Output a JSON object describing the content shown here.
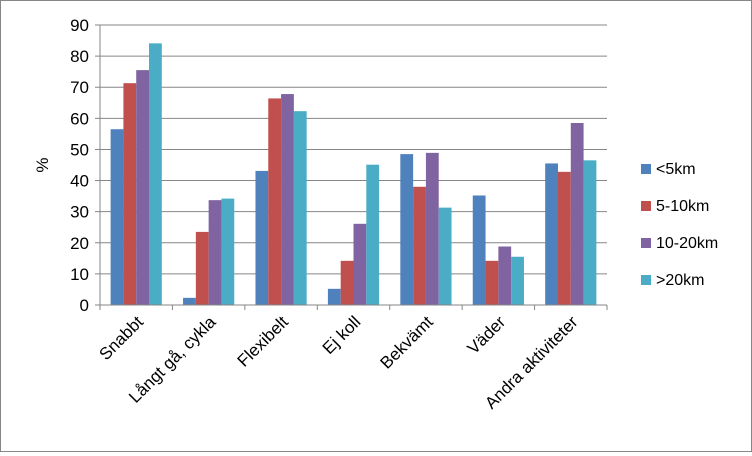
{
  "chart_data": {
    "type": "bar",
    "title": "",
    "xlabel": "",
    "ylabel": "%",
    "ylim": [
      0,
      90
    ],
    "yticks": [
      0,
      10,
      20,
      30,
      40,
      50,
      60,
      70,
      80,
      90
    ],
    "grid": "horizontal",
    "legend_position": "right",
    "categories": [
      "Snabbt",
      "Långt gå, cykla",
      "Flexibelt",
      "Ej koll",
      "Bekvämt",
      "Väder",
      "Andra aktiviteter"
    ],
    "series": [
      {
        "name": "<5km",
        "color": "#4F81BD",
        "values": [
          56.5,
          2.3,
          43.1,
          5.2,
          48.5,
          35.2,
          45.5
        ]
      },
      {
        "name": "5-10km",
        "color": "#C0504D",
        "values": [
          71.3,
          23.5,
          66.4,
          14.2,
          38.0,
          14.2,
          42.8
        ]
      },
      {
        "name": "10-20km",
        "color": "#8064A2",
        "values": [
          75.5,
          33.7,
          67.8,
          26.1,
          48.9,
          18.8,
          58.5
        ]
      },
      {
        "name": ">20km",
        "color": "#4BACC6",
        "values": [
          84.1,
          34.2,
          62.3,
          45.1,
          31.3,
          15.5,
          46.5
        ]
      }
    ]
  }
}
